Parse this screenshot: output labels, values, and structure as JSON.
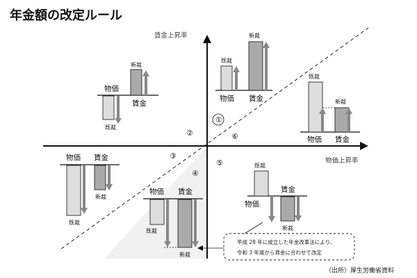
{
  "title": "年金額の改定ルール",
  "axes": {
    "y_label": "賃金上昇率",
    "x_label": "物価上昇率"
  },
  "labels": {
    "bukka": "物価",
    "chingin": "賃金",
    "kisai": "既裁",
    "shinsai": "新裁"
  },
  "regions": [
    "①",
    "②",
    "③",
    "④",
    "⑤",
    "⑥"
  ],
  "note": {
    "line1": "平成 28 年に成立した年金改革法により、",
    "line2": "令和 3 年度から賃金に合わせて改定"
  },
  "source": "（出所）厚生労働省資料"
}
